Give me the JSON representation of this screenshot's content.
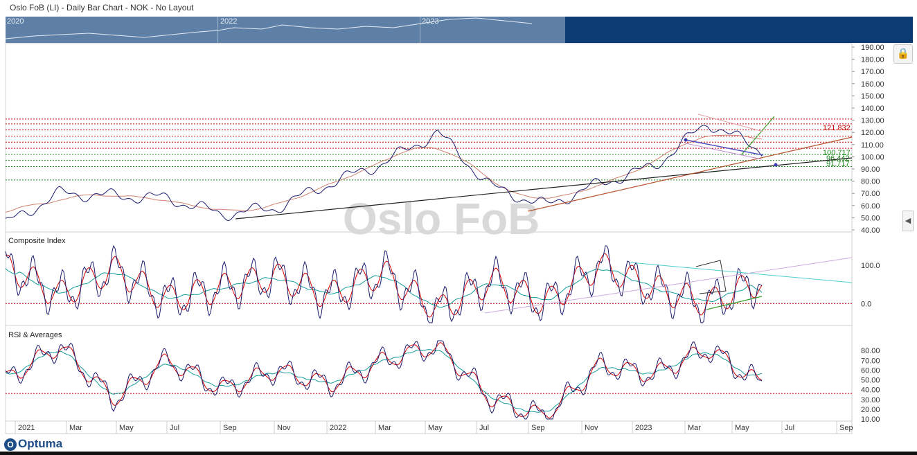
{
  "window": {
    "title": "Oslo FoB (LI) - Daily Bar Chart - NOK - No Layout"
  },
  "overview": {
    "years": [
      "2020",
      "2022",
      "2023"
    ]
  },
  "watermark": "Oslo FoB",
  "logo": {
    "text": "Optuma"
  },
  "icons": {
    "lock": "lock-icon",
    "collapse": "chevron-left-icon"
  },
  "colors": {
    "price": "#1a1a6e",
    "signal": "#d40000",
    "average": "#139c9c",
    "level_red": "#cc0000",
    "level_green": "#1f8a1f"
  },
  "chart_data": [
    {
      "type": "line",
      "name": "price-panel",
      "ylim": [
        40,
        190
      ],
      "yticks": [
        "190.00",
        "180.00",
        "170.00",
        "160.00",
        "150.00",
        "140.00",
        "130.00",
        "120.00",
        "110.00",
        "100.00",
        "90.00",
        "80.00",
        "70.00",
        "60.00",
        "50.00",
        "40.00"
      ],
      "series": [
        {
          "x": [
            "2021-01",
            "2021-03",
            "2021-05",
            "2021-07",
            "2021-09",
            "2021-11",
            "2022-01",
            "2022-03",
            "2022-05",
            "2022-07",
            "2022-09",
            "2022-11",
            "2023-01",
            "2023-03",
            "2023-05"
          ],
          "values": [
            45,
            70,
            68,
            66,
            53,
            58,
            78,
            95,
            120,
            75,
            60,
            78,
            92,
            128,
            105
          ]
        }
      ],
      "levels_red": [
        131,
        127,
        122,
        117,
        112,
        107
      ],
      "levels_green": [
        102,
        97,
        92,
        81
      ],
      "annotations": [
        "121.832",
        "100.717",
        "96.442",
        "91.717"
      ]
    },
    {
      "type": "line",
      "name": "composite-panel",
      "title": "Composite Index",
      "ylim": [
        -50,
        150
      ],
      "yticks": [
        "100.0",
        "0.0"
      ],
      "series": [
        {
          "x": [
            "2021-01",
            "2021-03",
            "2021-05",
            "2021-07",
            "2021-09",
            "2021-11",
            "2022-01",
            "2022-03",
            "2022-05",
            "2022-07",
            "2022-09",
            "2022-11",
            "2023-01",
            "2023-03",
            "2023-05"
          ],
          "values": [
            100,
            20,
            90,
            10,
            40,
            70,
            20,
            80,
            -20,
            60,
            0,
            100,
            40,
            0,
            60
          ]
        }
      ]
    },
    {
      "type": "line",
      "name": "rsi-panel",
      "title": "RSI & Averages",
      "ylim": [
        10,
        90
      ],
      "yticks": [
        "80.00",
        "70.00",
        "60.00",
        "50.00",
        "40.00",
        "30.00",
        "20.00",
        "10.00"
      ],
      "series": [
        {
          "x": [
            "2021-01",
            "2021-03",
            "2021-05",
            "2021-07",
            "2021-09",
            "2021-11",
            "2022-01",
            "2022-03",
            "2022-05",
            "2022-07",
            "2022-09",
            "2022-11",
            "2023-01",
            "2023-03",
            "2023-05"
          ],
          "values": [
            50,
            85,
            30,
            70,
            40,
            60,
            45,
            70,
            85,
            30,
            12,
            65,
            55,
            82,
            45
          ]
        }
      ],
      "reference_level": 36
    }
  ],
  "date_axis": [
    "2021",
    "Mar",
    "May",
    "Jul",
    "Sep",
    "Nov",
    "2022",
    "Mar",
    "May",
    "Jul",
    "Sep",
    "Nov",
    "2023",
    "Mar",
    "May",
    "Jul",
    "Sep"
  ]
}
